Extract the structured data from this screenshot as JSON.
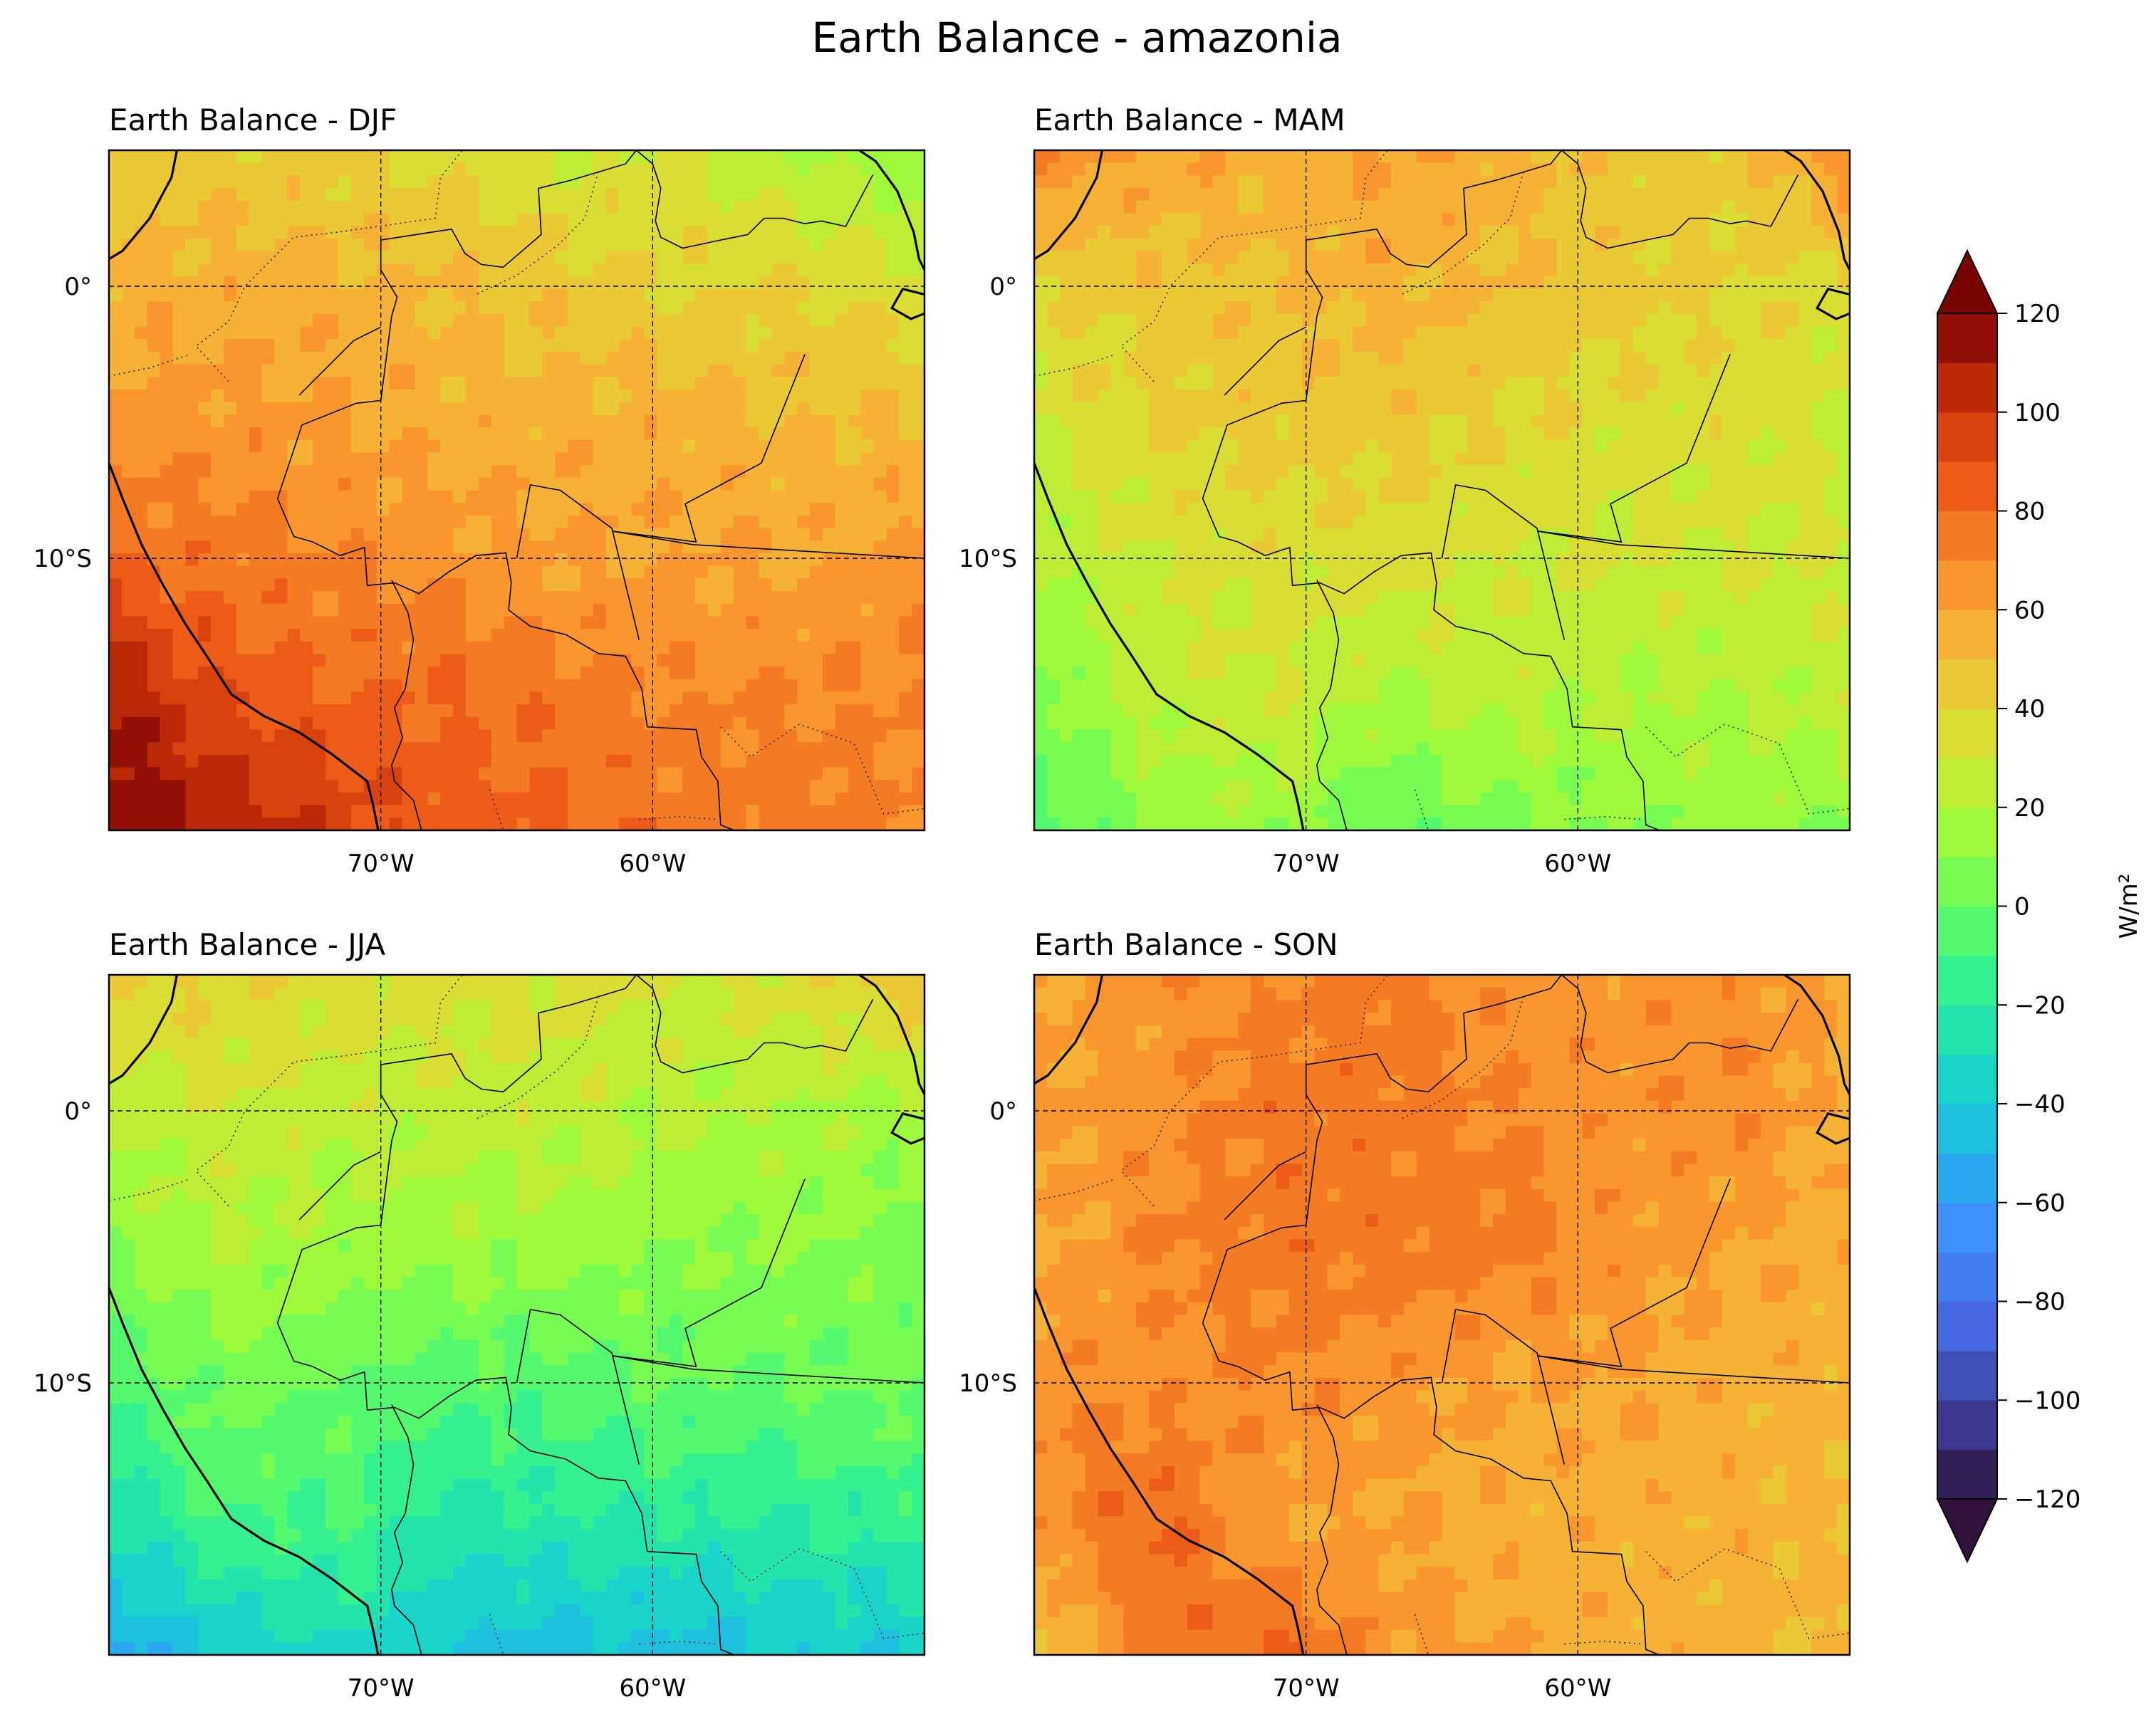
{
  "chart_data": {
    "type": "heatmap",
    "suptitle": "Earth Balance - amazonia",
    "units": "W/m²",
    "colormap": "turbo",
    "colorbar": {
      "min": -120,
      "max": 120,
      "step": 10,
      "extend": "both",
      "ticks": [
        -120,
        -100,
        -80,
        -60,
        -40,
        -20,
        0,
        20,
        40,
        60,
        80,
        100,
        120
      ],
      "tick_labels": [
        "−120",
        "−100",
        "−80",
        "−60",
        "−40",
        "−20",
        "0",
        "20",
        "40",
        "60",
        "80",
        "100",
        "120"
      ],
      "label": "W/m²"
    },
    "map_extent": {
      "lon": [
        -80,
        -50
      ],
      "lat": [
        -20,
        5
      ]
    },
    "gridlines": {
      "lon": [
        -70,
        -60
      ],
      "lat": [
        0,
        -10
      ],
      "style": "dashed"
    },
    "lon_tick_labels": [
      "70°W",
      "60°W"
    ],
    "lat_tick_labels": [
      "0°",
      "10°S"
    ],
    "panels": [
      {
        "title": "Earth Balance - DJF",
        "season": "DJF",
        "typical_range": [
          20,
          120
        ],
        "field": [
          [
            40,
            45,
            40,
            35,
            30,
            30,
            20,
            10
          ],
          [
            55,
            55,
            55,
            50,
            45,
            40,
            40,
            35
          ],
          [
            65,
            65,
            60,
            55,
            55,
            55,
            50,
            50
          ],
          [
            80,
            75,
            70,
            65,
            60,
            60,
            60,
            65
          ],
          [
            110,
            90,
            80,
            80,
            75,
            70,
            70,
            70
          ],
          [
            120,
            110,
            95,
            85,
            80,
            75,
            75,
            70
          ]
        ]
      },
      {
        "title": "Earth Balance - MAM",
        "season": "MAM",
        "typical_range": [
          -10,
          80
        ],
        "field": [
          [
            70,
            60,
            55,
            60,
            55,
            45,
            45,
            70
          ],
          [
            40,
            45,
            50,
            55,
            50,
            45,
            40,
            35
          ],
          [
            30,
            40,
            45,
            45,
            40,
            35,
            35,
            30
          ],
          [
            20,
            30,
            35,
            35,
            30,
            30,
            30,
            30
          ],
          [
            5,
            25,
            30,
            20,
            25,
            20,
            20,
            25
          ],
          [
            -5,
            10,
            15,
            0,
            5,
            10,
            15,
            10
          ]
        ]
      },
      {
        "title": "Earth Balance - JJA",
        "season": "JJA",
        "typical_range": [
          -70,
          50
        ],
        "field": [
          [
            45,
            40,
            35,
            35,
            35,
            30,
            35,
            50
          ],
          [
            20,
            30,
            25,
            25,
            25,
            20,
            20,
            15
          ],
          [
            10,
            20,
            15,
            15,
            15,
            10,
            10,
            5
          ],
          [
            -5,
            5,
            0,
            -5,
            -5,
            0,
            0,
            5
          ],
          [
            -30,
            -10,
            -10,
            -25,
            -20,
            -20,
            -20,
            -15
          ],
          [
            -55,
            -40,
            -30,
            -45,
            -45,
            -45,
            -40,
            -40
          ]
        ]
      },
      {
        "title": "Earth Balance - SON",
        "season": "SON",
        "typical_range": [
          30,
          120
        ],
        "field": [
          [
            60,
            65,
            70,
            75,
            65,
            65,
            65,
            60
          ],
          [
            60,
            65,
            75,
            75,
            70,
            65,
            70,
            55
          ],
          [
            55,
            70,
            75,
            75,
            75,
            65,
            60,
            55
          ],
          [
            70,
            65,
            70,
            65,
            60,
            60,
            55,
            55
          ],
          [
            65,
            85,
            60,
            60,
            55,
            55,
            55,
            50
          ],
          [
            45,
            70,
            85,
            65,
            60,
            55,
            55,
            50
          ]
        ]
      }
    ]
  }
}
